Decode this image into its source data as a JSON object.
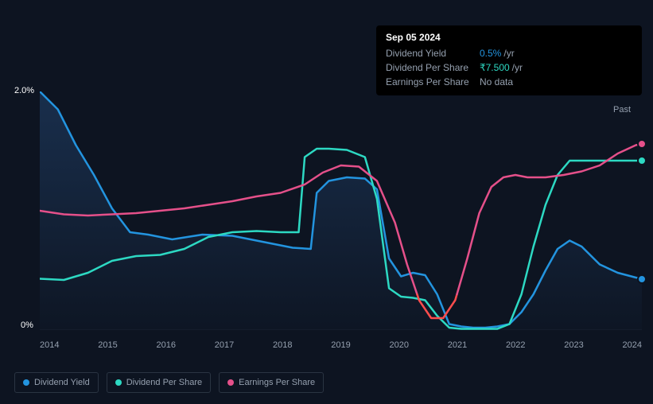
{
  "tooltip": {
    "date": "Sep 05 2024",
    "rows": [
      {
        "label": "Dividend Yield",
        "value": "0.5%",
        "unit": "/yr",
        "color": "#2394df"
      },
      {
        "label": "Dividend Per Share",
        "value": "₹7.500",
        "unit": "/yr",
        "color": "#2dd9c3"
      },
      {
        "label": "Earnings Per Share",
        "value": "No data",
        "unit": "",
        "color": "#95a0af"
      }
    ]
  },
  "chart": {
    "type": "line",
    "background_color": "#0d1421",
    "grid_line_color": "#1a2332",
    "axis_text_color": "#95a0af",
    "label_color": "#ffffff",
    "y_axis": {
      "min": 0,
      "max": 2.0,
      "ticks": [
        {
          "value": 0,
          "label": "0%"
        },
        {
          "value": 2.0,
          "label": "2.0%"
        }
      ]
    },
    "x_axis": {
      "ticks": [
        "2014",
        "2015",
        "2016",
        "2017",
        "2018",
        "2019",
        "2020",
        "2021",
        "2022",
        "2023",
        "2024"
      ]
    },
    "fill_gradient_color": "#1e3a5f",
    "past_label": "Past",
    "series": [
      {
        "name": "Dividend Yield",
        "color": "#2394df",
        "fill": true,
        "points": [
          [
            0,
            2.0
          ],
          [
            0.03,
            1.85
          ],
          [
            0.06,
            1.55
          ],
          [
            0.09,
            1.3
          ],
          [
            0.12,
            1.02
          ],
          [
            0.15,
            0.82
          ],
          [
            0.18,
            0.8
          ],
          [
            0.22,
            0.76
          ],
          [
            0.27,
            0.8
          ],
          [
            0.32,
            0.79
          ],
          [
            0.37,
            0.74
          ],
          [
            0.42,
            0.69
          ],
          [
            0.45,
            0.68
          ],
          [
            0.46,
            1.15
          ],
          [
            0.48,
            1.25
          ],
          [
            0.51,
            1.28
          ],
          [
            0.54,
            1.27
          ],
          [
            0.56,
            1.18
          ],
          [
            0.58,
            0.6
          ],
          [
            0.6,
            0.45
          ],
          [
            0.62,
            0.48
          ],
          [
            0.64,
            0.46
          ],
          [
            0.66,
            0.3
          ],
          [
            0.68,
            0.05
          ],
          [
            0.7,
            0.03
          ],
          [
            0.72,
            0.02
          ],
          [
            0.74,
            0.02
          ],
          [
            0.76,
            0.03
          ],
          [
            0.78,
            0.05
          ],
          [
            0.8,
            0.15
          ],
          [
            0.82,
            0.3
          ],
          [
            0.84,
            0.5
          ],
          [
            0.86,
            0.68
          ],
          [
            0.88,
            0.75
          ],
          [
            0.9,
            0.7
          ],
          [
            0.93,
            0.55
          ],
          [
            0.96,
            0.48
          ],
          [
            0.99,
            0.44
          ],
          [
            1.0,
            0.43
          ]
        ]
      },
      {
        "name": "Dividend Per Share",
        "color": "#2dd9c3",
        "fill": false,
        "points": [
          [
            0,
            0.43
          ],
          [
            0.04,
            0.42
          ],
          [
            0.08,
            0.48
          ],
          [
            0.12,
            0.58
          ],
          [
            0.16,
            0.62
          ],
          [
            0.2,
            0.63
          ],
          [
            0.24,
            0.68
          ],
          [
            0.28,
            0.78
          ],
          [
            0.32,
            0.82
          ],
          [
            0.36,
            0.83
          ],
          [
            0.4,
            0.82
          ],
          [
            0.43,
            0.82
          ],
          [
            0.44,
            1.45
          ],
          [
            0.46,
            1.52
          ],
          [
            0.48,
            1.52
          ],
          [
            0.51,
            1.51
          ],
          [
            0.54,
            1.45
          ],
          [
            0.56,
            1.1
          ],
          [
            0.58,
            0.35
          ],
          [
            0.6,
            0.28
          ],
          [
            0.62,
            0.27
          ],
          [
            0.64,
            0.25
          ],
          [
            0.66,
            0.12
          ],
          [
            0.68,
            0.02
          ],
          [
            0.7,
            0.01
          ],
          [
            0.72,
            0.01
          ],
          [
            0.74,
            0.01
          ],
          [
            0.76,
            0.01
          ],
          [
            0.78,
            0.05
          ],
          [
            0.8,
            0.3
          ],
          [
            0.82,
            0.7
          ],
          [
            0.84,
            1.05
          ],
          [
            0.86,
            1.3
          ],
          [
            0.88,
            1.42
          ],
          [
            0.9,
            1.42
          ],
          [
            0.93,
            1.42
          ],
          [
            0.96,
            1.42
          ],
          [
            0.99,
            1.42
          ],
          [
            1.0,
            1.42
          ]
        ]
      },
      {
        "name": "Earnings Per Share",
        "color": "#e5508a",
        "fill": false,
        "negative_color": "#ff4d4d",
        "threshold": 0.3,
        "points": [
          [
            0,
            1.0
          ],
          [
            0.04,
            0.97
          ],
          [
            0.08,
            0.96
          ],
          [
            0.12,
            0.97
          ],
          [
            0.16,
            0.98
          ],
          [
            0.2,
            1.0
          ],
          [
            0.24,
            1.02
          ],
          [
            0.28,
            1.05
          ],
          [
            0.32,
            1.08
          ],
          [
            0.36,
            1.12
          ],
          [
            0.4,
            1.15
          ],
          [
            0.44,
            1.22
          ],
          [
            0.47,
            1.32
          ],
          [
            0.5,
            1.38
          ],
          [
            0.53,
            1.37
          ],
          [
            0.56,
            1.25
          ],
          [
            0.59,
            0.9
          ],
          [
            0.61,
            0.55
          ],
          [
            0.63,
            0.25
          ],
          [
            0.65,
            0.1
          ],
          [
            0.67,
            0.1
          ],
          [
            0.69,
            0.25
          ],
          [
            0.71,
            0.6
          ],
          [
            0.73,
            0.98
          ],
          [
            0.75,
            1.2
          ],
          [
            0.77,
            1.28
          ],
          [
            0.79,
            1.3
          ],
          [
            0.81,
            1.28
          ],
          [
            0.84,
            1.28
          ],
          [
            0.87,
            1.3
          ],
          [
            0.9,
            1.33
          ],
          [
            0.93,
            1.38
          ],
          [
            0.96,
            1.48
          ],
          [
            0.99,
            1.55
          ],
          [
            1.0,
            1.56
          ]
        ]
      }
    ]
  },
  "legend": [
    {
      "label": "Dividend Yield",
      "color": "#2394df"
    },
    {
      "label": "Dividend Per Share",
      "color": "#2dd9c3"
    },
    {
      "label": "Earnings Per Share",
      "color": "#e5508a"
    }
  ]
}
